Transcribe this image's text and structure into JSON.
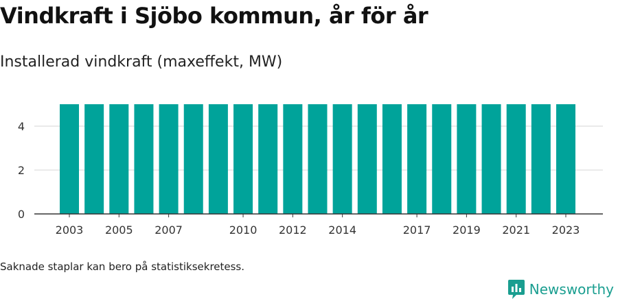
{
  "title": "Vindkraft i Sjöbo kommun, år för år",
  "subtitle": "Installerad vindkraft (maxeffekt, MW)",
  "footnote": "Saknade staplar kan bero på statistiksekretess.",
  "brand": {
    "name": "Newsworthy",
    "icon": "newsworthy-logo-icon"
  },
  "colors": {
    "bar": "#00a39a",
    "grid": "#dddddd",
    "axis": "#333333",
    "brand": "#1a9e90"
  },
  "chart_data": {
    "type": "bar",
    "x": [
      2003,
      2004,
      2005,
      2006,
      2007,
      2008,
      2009,
      2010,
      2011,
      2012,
      2013,
      2014,
      2015,
      2016,
      2017,
      2018,
      2019,
      2020,
      2021,
      2022,
      2023
    ],
    "values": [
      5,
      5,
      5,
      5,
      5,
      5,
      5,
      5,
      5,
      5,
      5,
      5,
      5,
      5,
      5,
      5,
      5,
      5,
      5,
      5,
      5
    ],
    "x_tick_labels": [
      "2003",
      "2005",
      "2007",
      "2010",
      "2012",
      "2014",
      "2017",
      "2019",
      "2021",
      "2023"
    ],
    "y_ticks": [
      0,
      2,
      4
    ],
    "ylim": [
      0,
      5
    ],
    "grid": true,
    "legend": "none"
  }
}
